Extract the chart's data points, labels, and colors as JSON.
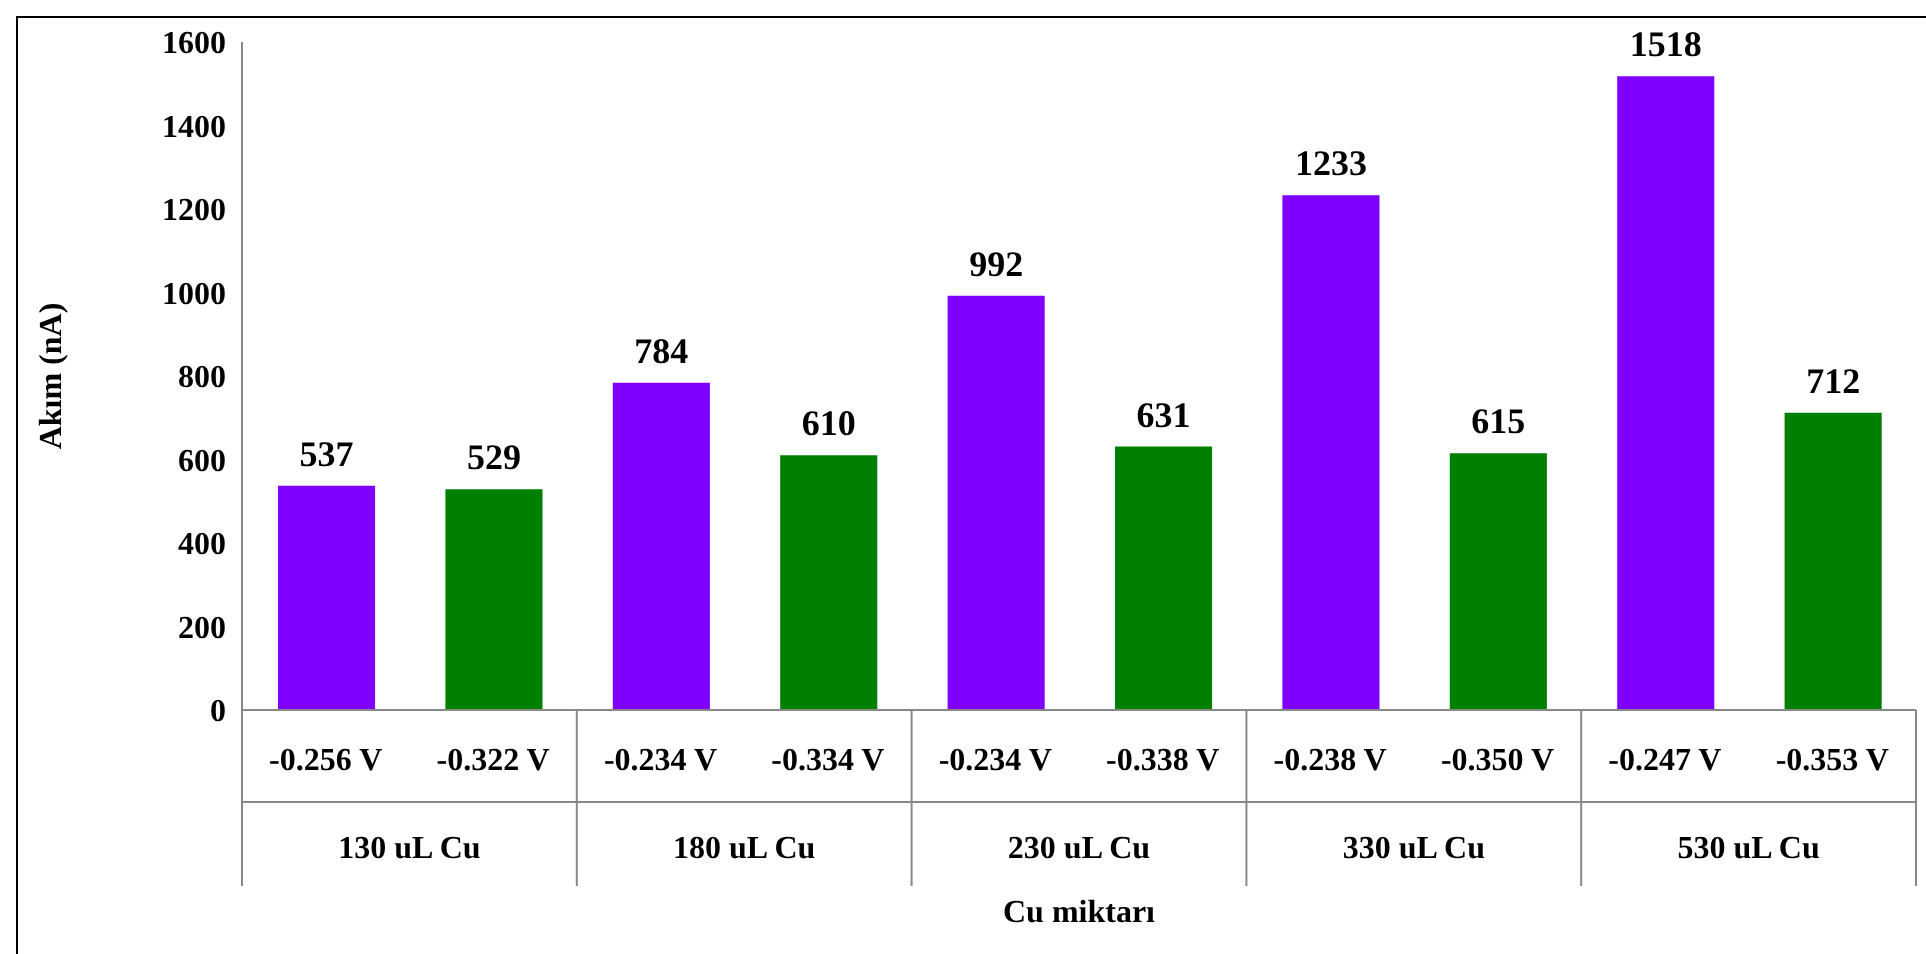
{
  "chart_data": {
    "type": "bar",
    "xlabel": "Cu miktarı",
    "ylabel": "Akım (nA)",
    "categories": [
      "-0.256 V",
      "-0.322 V",
      "-0.234 V",
      "-0.334 V",
      "-0.234 V",
      "-0.338 V",
      "-0.238 V",
      "-0.350 V",
      "-0.247 V",
      "-0.353 V"
    ],
    "values": [
      537,
      529,
      784,
      610,
      992,
      631,
      1233,
      615,
      1518,
      712
    ],
    "colors": [
      "#7f00ff",
      "#007f00",
      "#7f00ff",
      "#007f00",
      "#7f00ff",
      "#007f00",
      "#7f00ff",
      "#007f00",
      "#7f00ff",
      "#007f00"
    ],
    "annotations": [
      "130 uL Cu",
      "180 uL Cu",
      "230 uL Cu",
      "330 uL Cu",
      "530 uL Cu"
    ],
    "ylim": [
      0,
      1600
    ],
    "yticks": [
      0,
      200,
      400,
      600,
      800,
      1000,
      1200,
      1400,
      1600
    ],
    "data_labels": true
  }
}
